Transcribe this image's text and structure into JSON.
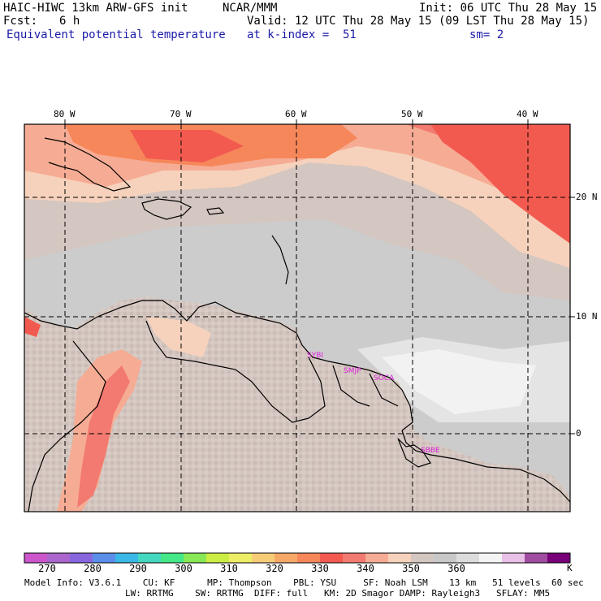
{
  "header": {
    "model": "HAIC-HIWC 13km ARW-GFS init",
    "org": "NCAR/MMM",
    "init": "Init: 06 UTC Thu 28 May 15",
    "fcst_label": "Fcst:",
    "fcst_value": "6 h",
    "valid": "Valid: 12 UTC Thu 28 May 15 (09 LST Thu 28 May 15)",
    "field": "Equivalent potential temperature",
    "level": "at k-index =  51",
    "smooth": "sm= 2"
  },
  "map": {
    "lon_labels": [
      "80 W",
      "70 W",
      "60 W",
      "50 W",
      "40 W"
    ],
    "lat_labels": [
      "20 N",
      "10 N",
      "0"
    ],
    "stations": [
      "SYBI",
      "SMJP",
      "SOCA",
      "SBBE"
    ]
  },
  "colorbar": {
    "colors": [
      "#cc55cc",
      "#aa66cc",
      "#8866dd",
      "#5a8ee8",
      "#3ab8e6",
      "#44d8c0",
      "#44e888",
      "#88e855",
      "#ccee44",
      "#eeee66",
      "#f6cc77",
      "#f6a866",
      "#f6875a",
      "#f25a50",
      "#f27a70",
      "#f6ac94",
      "#f6d2bc",
      "#d4c6c0",
      "#c8c8c8",
      "#dcdcdc",
      "#f4f4f4",
      "#e8c0e8",
      "#a04ca0",
      "#780078"
    ],
    "labels": [
      "270",
      "280",
      "290",
      "300",
      "310",
      "320",
      "330",
      "340",
      "350",
      "360"
    ],
    "unit": "K"
  },
  "model_info": {
    "line1": "Model Info: V3.6.1    CU: KF      MP: Thompson    PBL: YSU     SF: Noah LSM    13 km   51 levels  60 sec",
    "line2": "LW: RRTMG    SW: RRTMG  DIFF: full   KM: 2D Smagor DAMP: Rayleigh3   SFLAY: MM5"
  }
}
